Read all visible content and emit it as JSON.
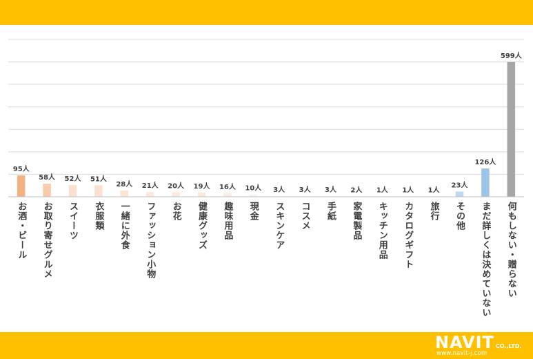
{
  "colors": {
    "band": "#FFC000",
    "grid": "#D9D9D9",
    "axis": "#BFBFBF",
    "label_text": "#404040"
  },
  "logo": {
    "name": "NAVIT",
    "suffix": "CO.,LTD.",
    "url": "www.navit-j.com"
  },
  "chart_data": {
    "type": "bar",
    "title": "",
    "xlabel": "",
    "ylabel": "",
    "ylim": [
      0,
      700
    ],
    "grid": true,
    "value_suffix": "人",
    "categories": [
      "お酒・ビール",
      "お取り寄せグルメ",
      "スイーツ",
      "衣服類",
      "一緒に外食",
      "ファッション小物",
      "お花",
      "健康グッズ",
      "趣味用品",
      "現金",
      "スキンケア",
      "コスメ",
      "手紙",
      "家電製品",
      "キッチン用品",
      "カタログギフト",
      "旅行",
      "その他",
      "まだ詳しくは決めていない",
      "何もしない・贈らない"
    ],
    "values": [
      95,
      58,
      52,
      51,
      28,
      21,
      20,
      19,
      16,
      10,
      3,
      3,
      3,
      2,
      1,
      1,
      1,
      23,
      126,
      599
    ],
    "bar_colors": [
      "#F4B183",
      "#F8CBAD",
      "#FBE0CF",
      "#FBE0CF",
      "#FCE4D6",
      "#FCE9DD",
      "#FCE9DD",
      "#FCE9DD",
      "#FDEEE5",
      "#FDF1EA",
      "#FDF5F0",
      "#FDF5F0",
      "#FDF5F0",
      "#FDF5F0",
      "#FDF5F0",
      "#FDF5F0",
      "#FDF5F0",
      "#BDD7EE",
      "#9DC3E6",
      "#A6A6A6"
    ],
    "value_labels": [
      "95人",
      "58人",
      "52人",
      "51人",
      "28人",
      "21人",
      "20人",
      "19人",
      "16人",
      "10人",
      "3人",
      "3人",
      "3人",
      "2人",
      "1人",
      "1人",
      "1人",
      "23人",
      "126人",
      "599人"
    ]
  }
}
